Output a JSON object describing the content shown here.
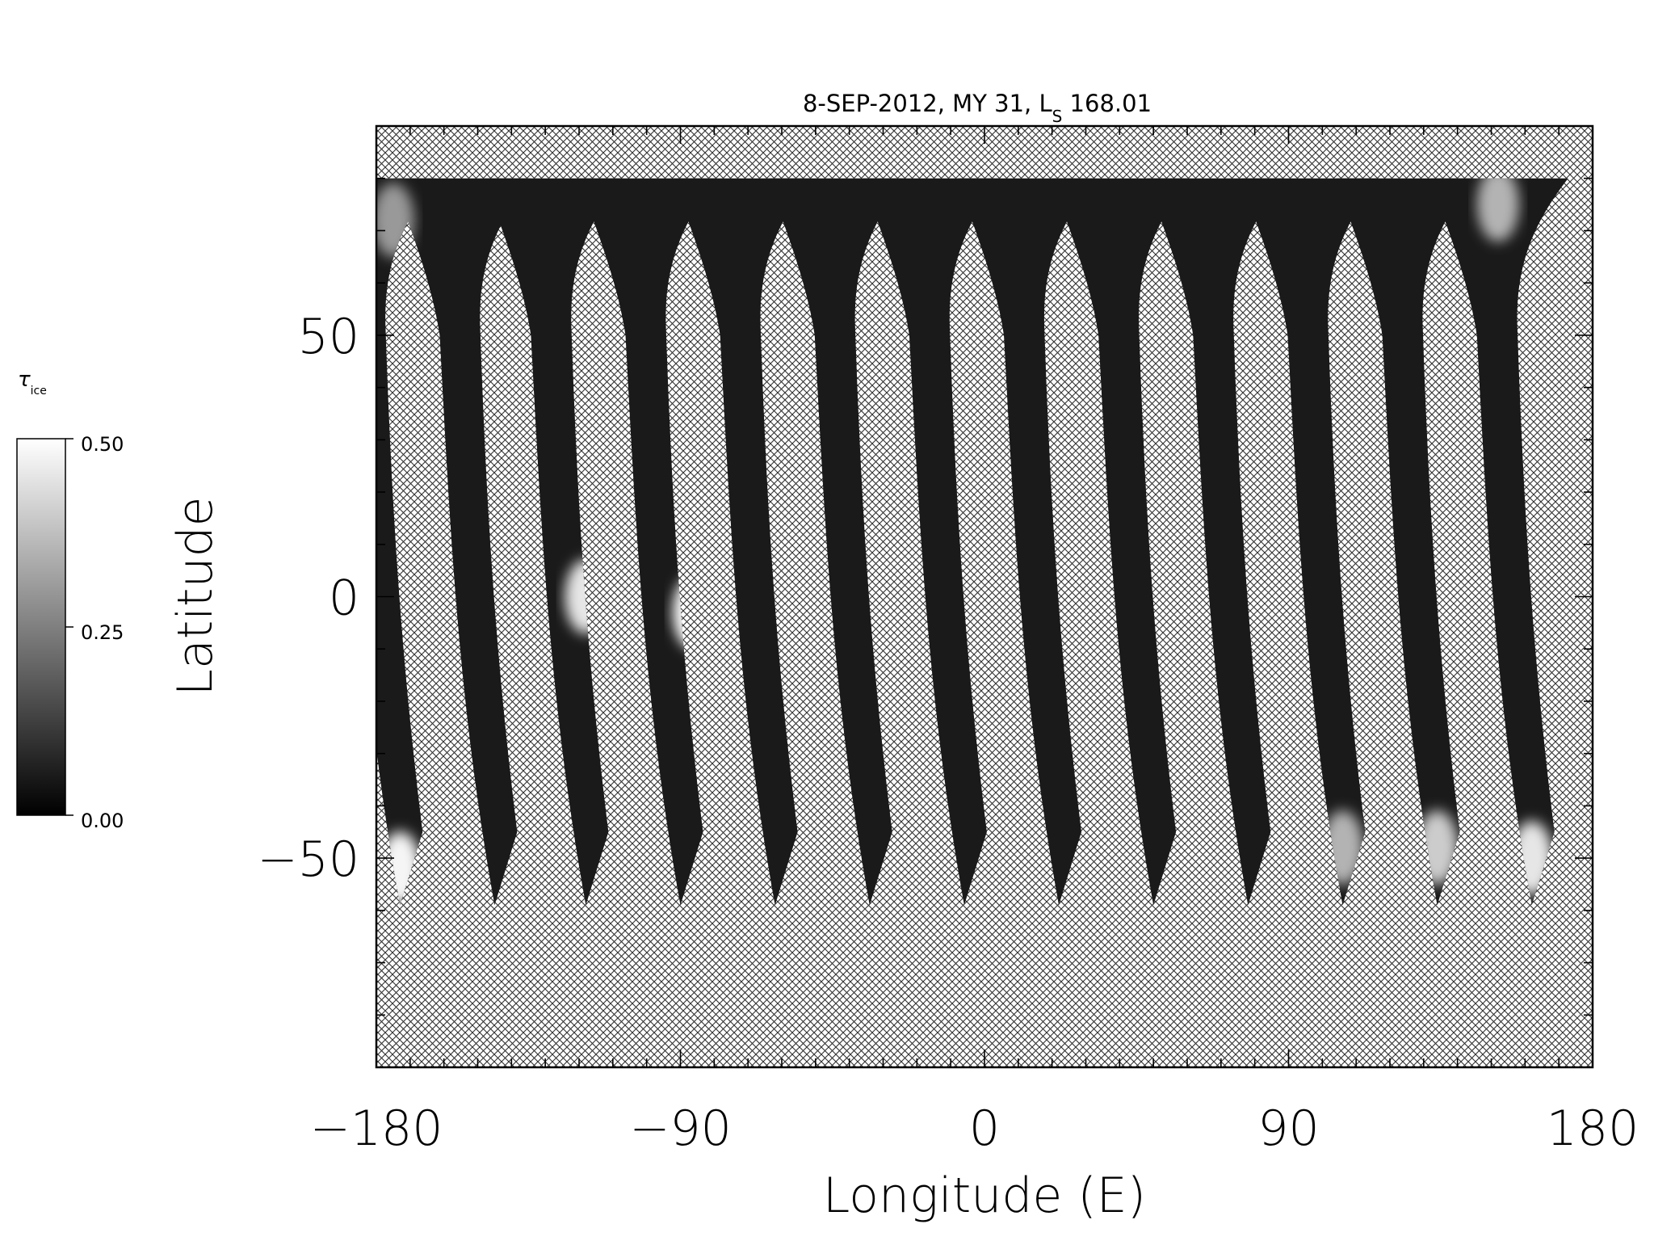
{
  "chart_data": {
    "type": "heatmap",
    "title": "8-SEP-2012, MY 31,  L",
    "title_subscript": "S",
    "title_suffix": " 168.01",
    "xlabel": "Longitude (E)",
    "ylabel": "Latitude",
    "xlim": [
      -180,
      180
    ],
    "ylim": [
      -90,
      90
    ],
    "xticks": [
      -180,
      -90,
      0,
      90,
      180
    ],
    "xtick_labels": [
      "−180",
      "−90",
      "0",
      "90",
      "180"
    ],
    "yticks": [
      -50,
      0,
      50
    ],
    "ytick_labels": [
      "−50",
      "0",
      "50"
    ],
    "x_minor_step": 10,
    "y_minor_step": 10,
    "no_data_fill": "crosshatch",
    "colormap": "grayscale",
    "colorbar": {
      "label": "τ",
      "label_subscript": "ice",
      "range": [
        0.0,
        0.5
      ],
      "ticks": [
        "0.00",
        "0.25",
        "0.50"
      ],
      "placement": "left"
    },
    "swaths": {
      "count": 13,
      "north_edge_lat": 80,
      "south_edge_lat": -59,
      "south_end_longitudes": [
        -173,
        -145,
        -118,
        -90,
        -62,
        -34,
        -6,
        22,
        50,
        78,
        106,
        134,
        162
      ],
      "background_tau": 0.05,
      "bright_regions": [
        {
          "lon": -118,
          "lat": 0,
          "tau": 0.45
        },
        {
          "lon": -86,
          "lat": -3,
          "tau": 0.5
        },
        {
          "lon": -173,
          "lat": -52,
          "tau": 0.48
        },
        {
          "lon": 162,
          "lat": -50,
          "tau": 0.45
        },
        {
          "lon": 134,
          "lat": -48,
          "tau": 0.4
        },
        {
          "lon": 106,
          "lat": -48,
          "tau": 0.35
        },
        {
          "lon": -175,
          "lat": 72,
          "tau": 0.3
        },
        {
          "lon": 152,
          "lat": 75,
          "tau": 0.35
        }
      ]
    }
  }
}
